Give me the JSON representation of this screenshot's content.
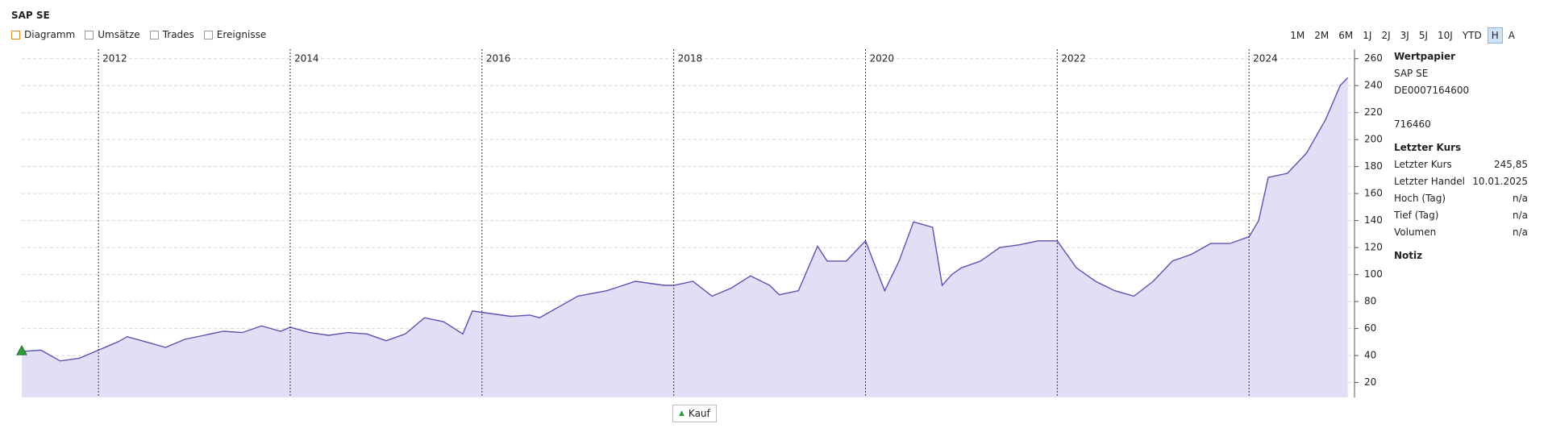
{
  "header": {
    "title": "SAP SE"
  },
  "toggles": [
    "Diagramm",
    "Umsätze",
    "Trades",
    "Ereignisse"
  ],
  "ranges": [
    "1M",
    "2M",
    "6M",
    "1J",
    "2J",
    "3J",
    "5J",
    "10J",
    "YTD",
    "H",
    "A"
  ],
  "active_range": "H",
  "chart_data": {
    "type": "area",
    "x": [
      2011.2,
      2011.4,
      2011.6,
      2011.8,
      2012.0,
      2012.2,
      2012.3,
      2012.5,
      2012.7,
      2012.9,
      2013.1,
      2013.3,
      2013.5,
      2013.7,
      2013.9,
      2014.0,
      2014.2,
      2014.4,
      2014.6,
      2014.8,
      2015.0,
      2015.2,
      2015.4,
      2015.6,
      2015.8,
      2015.9,
      2016.0,
      2016.3,
      2016.5,
      2016.6,
      2016.8,
      2017.0,
      2017.3,
      2017.6,
      2017.9,
      2018.0,
      2018.2,
      2018.4,
      2018.6,
      2018.8,
      2019.0,
      2019.1,
      2019.3,
      2019.5,
      2019.6,
      2019.8,
      2020.0,
      2020.2,
      2020.35,
      2020.5,
      2020.7,
      2020.8,
      2020.9,
      2021.0,
      2021.2,
      2021.4,
      2021.6,
      2021.8,
      2022.0,
      2022.2,
      2022.4,
      2022.6,
      2022.8,
      2023.0,
      2023.2,
      2023.4,
      2023.6,
      2023.8,
      2024.0,
      2024.1,
      2024.2,
      2024.4,
      2024.6,
      2024.8,
      2024.95,
      2025.03
    ],
    "values": [
      43,
      44,
      36,
      38,
      44,
      50,
      54,
      50,
      46,
      52,
      55,
      58,
      57,
      62,
      58,
      61,
      57,
      55,
      57,
      56,
      51,
      56,
      68,
      65,
      56,
      73,
      72,
      69,
      70,
      68,
      76,
      84,
      88,
      95,
      92,
      92,
      95,
      84,
      90,
      99,
      92,
      85,
      88,
      121,
      110,
      110,
      125,
      88,
      110,
      139,
      135,
      92,
      100,
      105,
      110,
      120,
      122,
      125,
      125,
      105,
      95,
      88,
      84,
      95,
      110,
      115,
      123,
      123,
      128,
      140,
      172,
      175,
      190,
      215,
      240,
      245.85
    ],
    "color": "#5a54ae",
    "fill": "#e1def5",
    "xlim": [
      2011.2,
      2025.1
    ],
    "xticks": [
      2012,
      2014,
      2016,
      2018,
      2020,
      2022,
      2024
    ],
    "ylim": [
      9,
      267
    ],
    "yticks": [
      20,
      40,
      60,
      80,
      100,
      120,
      140,
      160,
      180,
      200,
      220,
      240,
      260
    ],
    "grid": true,
    "legend": [
      "Kauf"
    ],
    "marker_color": "#2e9e3e"
  },
  "panel": [
    {
      "title": "Wertpapier",
      "lines": [
        "SAP SE",
        "DE0007164600",
        "716460"
      ]
    },
    {
      "title": "Letzter Kurs",
      "rows": [
        [
          "Letzter Kurs",
          "245,85"
        ],
        [
          "Letzter Handel",
          "10.01.2025"
        ],
        [
          "Hoch (Tag)",
          "n/a"
        ],
        [
          "Tief (Tag)",
          "n/a"
        ],
        [
          "Volumen",
          "n/a"
        ]
      ]
    },
    {
      "title": "Notiz"
    }
  ]
}
